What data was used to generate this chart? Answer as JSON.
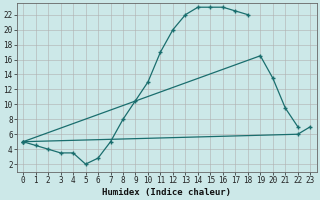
{
  "xlabel": "Humidex (Indice chaleur)",
  "background_color": "#cce8e8",
  "line_color": "#1a6e6e",
  "grid_color": "#b0b0b0",
  "line1_x": [
    0,
    1,
    2,
    3,
    4,
    5,
    6,
    7,
    8,
    9,
    10,
    11,
    12,
    13,
    14,
    15,
    16,
    17,
    18
  ],
  "line1_y": [
    5,
    4.5,
    4,
    3.5,
    3.5,
    2,
    2.8,
    5,
    8,
    10.5,
    13,
    17,
    20,
    22,
    23,
    23,
    23,
    22.5,
    22
  ],
  "line2_x": [
    0,
    19,
    20,
    21,
    22
  ],
  "line2_y": [
    5,
    16.5,
    13.5,
    9.5,
    7
  ],
  "line3_x": [
    0,
    22,
    23
  ],
  "line3_y": [
    5,
    6,
    7
  ],
  "xlim": [
    -0.5,
    23.5
  ],
  "ylim": [
    1,
    23.5
  ],
  "xticks": [
    0,
    1,
    2,
    3,
    4,
    5,
    6,
    7,
    8,
    9,
    10,
    11,
    12,
    13,
    14,
    15,
    16,
    17,
    18,
    19,
    20,
    21,
    22,
    23
  ],
  "yticks": [
    2,
    4,
    6,
    8,
    10,
    12,
    14,
    16,
    18,
    20,
    22
  ],
  "tick_fontsize": 5.5,
  "xlabel_fontsize": 6.5
}
